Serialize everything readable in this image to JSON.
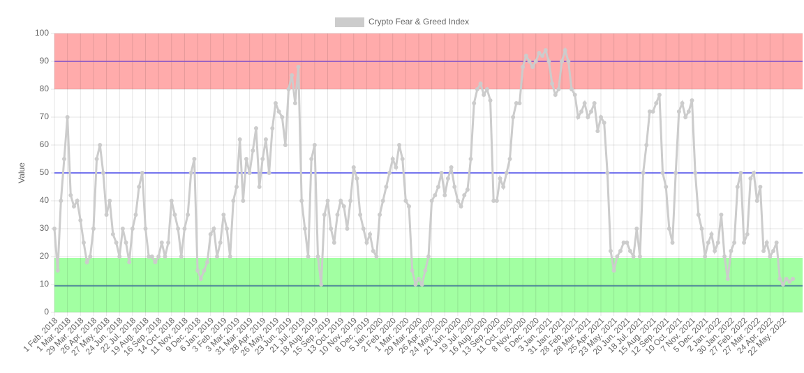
{
  "chart_data": {
    "type": "line",
    "categories": [
      "1 Feb. 2018",
      null,
      null,
      null,
      "1 Mar. 2018",
      null,
      null,
      null,
      "29 Mar. 2018",
      null,
      null,
      null,
      "26 Apr. 2018",
      null,
      null,
      null,
      "27 May. 2018",
      null,
      null,
      null,
      "24 Jun. 2018",
      null,
      null,
      null,
      "22 Jul. 2018",
      null,
      null,
      null,
      "19 Aug. 2018",
      null,
      null,
      null,
      "16 Sep. 2018",
      null,
      null,
      null,
      "14 Oct. 2018",
      null,
      null,
      null,
      "11 Nov. 2018",
      null,
      null,
      null,
      "9 Dec. 2018",
      null,
      null,
      null,
      "6 Jan. 2019",
      null,
      null,
      null,
      "3 Feb. 2019",
      null,
      null,
      null,
      "3 Mar. 2019",
      null,
      null,
      null,
      "31 Mar. 2019",
      null,
      null,
      null,
      "28 Apr. 2019",
      null,
      null,
      null,
      "26 May. 2019",
      null,
      null,
      null,
      "23 Jun. 2019",
      null,
      null,
      null,
      "21 Jul. 2019",
      null,
      null,
      null,
      "18 Aug. 2019",
      null,
      null,
      null,
      "15 Sep. 2019",
      null,
      null,
      null,
      "13 Oct. 2019",
      null,
      null,
      null,
      "10 Nov. 2019",
      null,
      null,
      null,
      "8 Dec. 2019",
      null,
      null,
      null,
      "5 Jan. 2020",
      null,
      null,
      null,
      "2 Feb. 2020",
      null,
      null,
      null,
      "1 Mar. 2020",
      null,
      null,
      null,
      "29 Mar. 2020",
      null,
      null,
      null,
      "26 Apr. 2020",
      null,
      null,
      null,
      "24 May. 2020",
      null,
      null,
      null,
      "21 Jun. 2020",
      null,
      null,
      null,
      "19 Jul. 2020",
      null,
      null,
      null,
      "16 Aug. 2020",
      null,
      null,
      null,
      "13 Sep. 2020",
      null,
      null,
      null,
      "11 Oct. 2020",
      null,
      null,
      null,
      "8 Nov. 2020",
      null,
      null,
      null,
      "6 Dec. 2020",
      null,
      null,
      null,
      "3 Jan. 2021",
      null,
      null,
      null,
      "31 Jan. 2021",
      null,
      null,
      null,
      "28 Feb. 2021",
      null,
      null,
      null,
      "28 Mar. 2021",
      null,
      null,
      null,
      "25 Apr. 2021",
      null,
      null,
      null,
      "23 May. 2021",
      null,
      null,
      null,
      "20 Jun. 2021",
      null,
      null,
      null,
      "18 Jul. 2021",
      null,
      null,
      null,
      "15 Aug. 2021",
      null,
      null,
      null,
      "12 Sep. 2021",
      null,
      null,
      null,
      "10 Oct. 2021",
      null,
      null,
      null,
      "7 Nov. 2021",
      null,
      null,
      null,
      "5 Dec. 2021",
      null,
      null,
      null,
      "2 Jan. 2022",
      null,
      null,
      null,
      "30 Jan. 2022",
      null,
      null,
      null,
      "27 Feb. 2022",
      null,
      null,
      null,
      "27 Mar. 2022",
      null,
      null,
      null,
      "24 Apr. 2022",
      null,
      null,
      null,
      "22 May. 2022",
      null,
      null,
      null
    ],
    "series": [
      {
        "name": "Crypto Fear & Greed Index",
        "color": "#cccccc",
        "values": [
          30,
          15,
          40,
          55,
          70,
          42,
          38,
          40,
          33,
          25,
          18,
          20,
          30,
          55,
          60,
          50,
          35,
          40,
          28,
          25,
          20,
          30,
          25,
          18,
          30,
          35,
          45,
          50,
          30,
          20,
          20,
          18,
          20,
          25,
          20,
          25,
          40,
          35,
          30,
          20,
          30,
          35,
          50,
          55,
          15,
          12,
          15,
          18,
          28,
          30,
          20,
          25,
          35,
          30,
          20,
          40,
          45,
          62,
          40,
          55,
          50,
          58,
          66,
          45,
          55,
          62,
          50,
          66,
          75,
          72,
          70,
          60,
          80,
          85,
          75,
          88,
          40,
          30,
          20,
          55,
          60,
          20,
          10,
          35,
          40,
          30,
          25,
          35,
          40,
          38,
          30,
          40,
          52,
          48,
          35,
          30,
          25,
          28,
          22,
          20,
          35,
          40,
          45,
          50,
          55,
          52,
          60,
          55,
          40,
          38,
          15,
          10,
          12,
          10,
          15,
          20,
          40,
          42,
          45,
          50,
          42,
          48,
          52,
          45,
          40,
          38,
          42,
          44,
          55,
          75,
          80,
          82,
          78,
          80,
          76,
          40,
          40,
          48,
          45,
          50,
          55,
          70,
          75,
          75,
          88,
          92,
          90,
          88,
          90,
          93,
          92,
          94,
          90,
          82,
          78,
          80,
          90,
          94,
          90,
          80,
          78,
          70,
          72,
          75,
          70,
          72,
          75,
          65,
          70,
          68,
          50,
          22,
          15,
          20,
          22,
          25,
          25,
          22,
          20,
          30,
          20,
          50,
          60,
          72,
          72,
          75,
          78,
          50,
          45,
          30,
          25,
          50,
          72,
          75,
          70,
          72,
          76,
          50,
          35,
          30,
          20,
          25,
          28,
          22,
          25,
          35,
          20,
          12,
          22,
          25,
          45,
          50,
          25,
          28,
          48,
          50,
          40,
          45,
          22,
          25,
          20,
          22,
          25,
          12,
          10,
          12,
          11,
          12
        ]
      }
    ],
    "y_label": "Value",
    "ylim": [
      0,
      100
    ],
    "yticks": [
      0,
      10,
      20,
      30,
      40,
      50,
      60,
      70,
      80,
      90,
      100
    ],
    "grid": true,
    "legend": "top",
    "bands": [
      {
        "from": 80,
        "to": 100,
        "color": "#ff6666"
      },
      {
        "from": 0,
        "to": 19.5,
        "color": "#55ff55"
      }
    ],
    "lines": [
      {
        "value": 90,
        "color": "#8855cc"
      },
      {
        "value": 50,
        "color": "#5555ee"
      },
      {
        "value": 9.5,
        "color": "#447799"
      }
    ]
  }
}
